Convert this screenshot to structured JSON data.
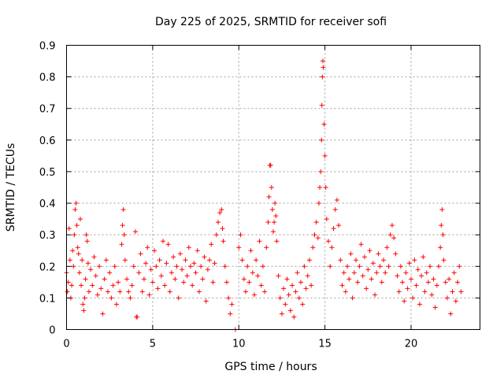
{
  "chart_data": {
    "type": "scatter",
    "title": "Day 225 of 2025, SRMTID for receiver sofi",
    "xlabel": "GPS time / hours",
    "ylabel": "SRMTID / TECUs",
    "xlim": [
      0,
      24
    ],
    "ylim": [
      0,
      0.9
    ],
    "xticks": [
      0,
      5,
      10,
      15,
      20
    ],
    "xtick_labels": [
      "0",
      "5",
      "10",
      "15",
      "20"
    ],
    "yticks": [
      0,
      0.1,
      0.2,
      0.3,
      0.4,
      0.5,
      0.6,
      0.7,
      0.8,
      0.9
    ],
    "ytick_labels": [
      "0",
      "0.1",
      "0.2",
      "0.3",
      "0.4",
      "0.5",
      "0.6",
      "0.7",
      "0.8",
      "0.9"
    ],
    "grid": true,
    "marker": "plus",
    "color": "#ff0000",
    "series": [
      {
        "name": "SRMTID",
        "points": [
          [
            0.0,
            0.18
          ],
          [
            0.05,
            0.12
          ],
          [
            0.1,
            0.15
          ],
          [
            0.15,
            0.32
          ],
          [
            0.2,
            0.22
          ],
          [
            0.25,
            0.1
          ],
          [
            0.3,
            0.14
          ],
          [
            0.35,
            0.25
          ],
          [
            0.4,
            0.2
          ],
          [
            0.45,
            0.3
          ],
          [
            0.5,
            0.38
          ],
          [
            0.55,
            0.4
          ],
          [
            0.6,
            0.33
          ],
          [
            0.65,
            0.26
          ],
          [
            0.7,
            0.24
          ],
          [
            0.75,
            0.18
          ],
          [
            0.8,
            0.35
          ],
          [
            0.85,
            0.14
          ],
          [
            0.9,
            0.22
          ],
          [
            0.95,
            0.08
          ],
          [
            1.0,
            0.06
          ],
          [
            1.05,
            0.1
          ],
          [
            1.1,
            0.16
          ],
          [
            1.15,
            0.3
          ],
          [
            1.2,
            0.28
          ],
          [
            1.25,
            0.21
          ],
          [
            1.3,
            0.12
          ],
          [
            1.4,
            0.19
          ],
          [
            1.5,
            0.14
          ],
          [
            1.6,
            0.23
          ],
          [
            1.7,
            0.17
          ],
          [
            1.8,
            0.11
          ],
          [
            1.9,
            0.2
          ],
          [
            2.0,
            0.13
          ],
          [
            2.1,
            0.05
          ],
          [
            2.2,
            0.16
          ],
          [
            2.3,
            0.22
          ],
          [
            2.4,
            0.12
          ],
          [
            2.5,
            0.18
          ],
          [
            2.6,
            0.1
          ],
          [
            2.7,
            0.14
          ],
          [
            2.8,
            0.2
          ],
          [
            2.9,
            0.08
          ],
          [
            3.0,
            0.15
          ],
          [
            3.1,
            0.12
          ],
          [
            3.2,
            0.27
          ],
          [
            3.25,
            0.33
          ],
          [
            3.3,
            0.38
          ],
          [
            3.35,
            0.3
          ],
          [
            3.4,
            0.22
          ],
          [
            3.5,
            0.16
          ],
          [
            3.6,
            0.12
          ],
          [
            3.7,
            0.1
          ],
          [
            3.8,
            0.14
          ],
          [
            3.9,
            0.2
          ],
          [
            4.0,
            0.31
          ],
          [
            4.05,
            0.04
          ],
          [
            4.1,
            0.04
          ],
          [
            4.2,
            0.18
          ],
          [
            4.3,
            0.24
          ],
          [
            4.4,
            0.12
          ],
          [
            4.5,
            0.16
          ],
          [
            4.6,
            0.21
          ],
          [
            4.7,
            0.26
          ],
          [
            4.8,
            0.11
          ],
          [
            4.9,
            0.19
          ],
          [
            5.0,
            0.15
          ],
          [
            5.1,
            0.25
          ],
          [
            5.2,
            0.2
          ],
          [
            5.3,
            0.13
          ],
          [
            5.4,
            0.22
          ],
          [
            5.5,
            0.17
          ],
          [
            5.6,
            0.28
          ],
          [
            5.7,
            0.14
          ],
          [
            5.8,
            0.21
          ],
          [
            5.9,
            0.27
          ],
          [
            6.0,
            0.12
          ],
          [
            6.1,
            0.18
          ],
          [
            6.2,
            0.23
          ],
          [
            6.3,
            0.16
          ],
          [
            6.4,
            0.2
          ],
          [
            6.5,
            0.1
          ],
          [
            6.6,
            0.24
          ],
          [
            6.7,
            0.19
          ],
          [
            6.8,
            0.15
          ],
          [
            6.9,
            0.22
          ],
          [
            7.0,
            0.17
          ],
          [
            7.1,
            0.26
          ],
          [
            7.2,
            0.2
          ],
          [
            7.3,
            0.14
          ],
          [
            7.4,
            0.21
          ],
          [
            7.5,
            0.18
          ],
          [
            7.6,
            0.25
          ],
          [
            7.7,
            0.12
          ],
          [
            7.8,
            0.2
          ],
          [
            7.9,
            0.16
          ],
          [
            8.0,
            0.23
          ],
          [
            8.1,
            0.09
          ],
          [
            8.2,
            0.19
          ],
          [
            8.3,
            0.22
          ],
          [
            8.4,
            0.27
          ],
          [
            8.5,
            0.15
          ],
          [
            8.6,
            0.21
          ],
          [
            8.7,
            0.3
          ],
          [
            8.8,
            0.34
          ],
          [
            8.9,
            0.37
          ],
          [
            9.0,
            0.38
          ],
          [
            9.05,
            0.32
          ],
          [
            9.1,
            0.28
          ],
          [
            9.2,
            0.2
          ],
          [
            9.3,
            0.15
          ],
          [
            9.4,
            0.1
          ],
          [
            9.5,
            0.05
          ],
          [
            9.6,
            0.08
          ],
          [
            9.8,
            0.0
          ],
          [
            10.0,
            0.26
          ],
          [
            10.1,
            0.3
          ],
          [
            10.2,
            0.22
          ],
          [
            10.3,
            0.16
          ],
          [
            10.4,
            0.12
          ],
          [
            10.5,
            0.2
          ],
          [
            10.6,
            0.15
          ],
          [
            10.7,
            0.25
          ],
          [
            10.8,
            0.18
          ],
          [
            10.9,
            0.11
          ],
          [
            11.0,
            0.22
          ],
          [
            11.1,
            0.17
          ],
          [
            11.2,
            0.28
          ],
          [
            11.3,
            0.14
          ],
          [
            11.4,
            0.2
          ],
          [
            11.5,
            0.12
          ],
          [
            11.6,
            0.26
          ],
          [
            11.7,
            0.34
          ],
          [
            11.75,
            0.42
          ],
          [
            11.8,
            0.52
          ],
          [
            11.85,
            0.52
          ],
          [
            11.9,
            0.45
          ],
          [
            11.95,
            0.38
          ],
          [
            12.0,
            0.31
          ],
          [
            12.05,
            0.34
          ],
          [
            12.1,
            0.4
          ],
          [
            12.15,
            0.36
          ],
          [
            12.2,
            0.28
          ],
          [
            12.3,
            0.17
          ],
          [
            12.4,
            0.1
          ],
          [
            12.5,
            0.05
          ],
          [
            12.6,
            0.13
          ],
          [
            12.7,
            0.08
          ],
          [
            12.8,
            0.16
          ],
          [
            12.9,
            0.11
          ],
          [
            13.0,
            0.06
          ],
          [
            13.1,
            0.14
          ],
          [
            13.2,
            0.04
          ],
          [
            13.3,
            0.12
          ],
          [
            13.4,
            0.18
          ],
          [
            13.5,
            0.1
          ],
          [
            13.6,
            0.15
          ],
          [
            13.7,
            0.08
          ],
          [
            13.8,
            0.2
          ],
          [
            13.9,
            0.13
          ],
          [
            14.0,
            0.17
          ],
          [
            14.1,
            0.22
          ],
          [
            14.2,
            0.14
          ],
          [
            14.3,
            0.26
          ],
          [
            14.4,
            0.3
          ],
          [
            14.5,
            0.34
          ],
          [
            14.6,
            0.29
          ],
          [
            14.65,
            0.4
          ],
          [
            14.7,
            0.45
          ],
          [
            14.75,
            0.5
          ],
          [
            14.8,
            0.6
          ],
          [
            14.82,
            0.71
          ],
          [
            14.85,
            0.8
          ],
          [
            14.88,
            0.85
          ],
          [
            14.9,
            0.83
          ],
          [
            14.95,
            0.65
          ],
          [
            15.0,
            0.55
          ],
          [
            15.05,
            0.45
          ],
          [
            15.1,
            0.35
          ],
          [
            15.2,
            0.28
          ],
          [
            15.3,
            0.2
          ],
          [
            15.4,
            0.26
          ],
          [
            15.5,
            0.32
          ],
          [
            15.6,
            0.38
          ],
          [
            15.7,
            0.41
          ],
          [
            15.8,
            0.33
          ],
          [
            15.9,
            0.22
          ],
          [
            16.0,
            0.14
          ],
          [
            16.1,
            0.18
          ],
          [
            16.2,
            0.12
          ],
          [
            16.3,
            0.2
          ],
          [
            16.4,
            0.16
          ],
          [
            16.5,
            0.24
          ],
          [
            16.6,
            0.1
          ],
          [
            16.7,
            0.18
          ],
          [
            16.8,
            0.22
          ],
          [
            16.9,
            0.15
          ],
          [
            17.0,
            0.2
          ],
          [
            17.1,
            0.27
          ],
          [
            17.2,
            0.17
          ],
          [
            17.3,
            0.23
          ],
          [
            17.4,
            0.13
          ],
          [
            17.5,
            0.19
          ],
          [
            17.6,
            0.25
          ],
          [
            17.7,
            0.16
          ],
          [
            17.8,
            0.21
          ],
          [
            17.9,
            0.11
          ],
          [
            18.0,
            0.18
          ],
          [
            18.1,
            0.24
          ],
          [
            18.2,
            0.2
          ],
          [
            18.3,
            0.15
          ],
          [
            18.4,
            0.22
          ],
          [
            18.5,
            0.18
          ],
          [
            18.6,
            0.26
          ],
          [
            18.7,
            0.2
          ],
          [
            18.8,
            0.3
          ],
          [
            18.9,
            0.33
          ],
          [
            19.0,
            0.29
          ],
          [
            19.1,
            0.24
          ],
          [
            19.2,
            0.17
          ],
          [
            19.3,
            0.12
          ],
          [
            19.4,
            0.2
          ],
          [
            19.5,
            0.15
          ],
          [
            19.6,
            0.09
          ],
          [
            19.7,
            0.18
          ],
          [
            19.8,
            0.13
          ],
          [
            19.9,
            0.21
          ],
          [
            20.0,
            0.16
          ],
          [
            20.1,
            0.1
          ],
          [
            20.2,
            0.22
          ],
          [
            20.3,
            0.14
          ],
          [
            20.4,
            0.19
          ],
          [
            20.5,
            0.08
          ],
          [
            20.6,
            0.17
          ],
          [
            20.7,
            0.23
          ],
          [
            20.8,
            0.12
          ],
          [
            20.9,
            0.18
          ],
          [
            21.0,
            0.15
          ],
          [
            21.1,
            0.2
          ],
          [
            21.2,
            0.11
          ],
          [
            21.3,
            0.16
          ],
          [
            21.4,
            0.07
          ],
          [
            21.5,
            0.14
          ],
          [
            21.6,
            0.2
          ],
          [
            21.7,
            0.26
          ],
          [
            21.75,
            0.33
          ],
          [
            21.8,
            0.38
          ],
          [
            21.85,
            0.3
          ],
          [
            21.9,
            0.22
          ],
          [
            22.0,
            0.15
          ],
          [
            22.1,
            0.1
          ],
          [
            22.2,
            0.16
          ],
          [
            22.3,
            0.05
          ],
          [
            22.4,
            0.12
          ],
          [
            22.5,
            0.18
          ],
          [
            22.6,
            0.09
          ],
          [
            22.7,
            0.15
          ],
          [
            22.8,
            0.2
          ],
          [
            22.9,
            0.12
          ]
        ]
      }
    ]
  }
}
